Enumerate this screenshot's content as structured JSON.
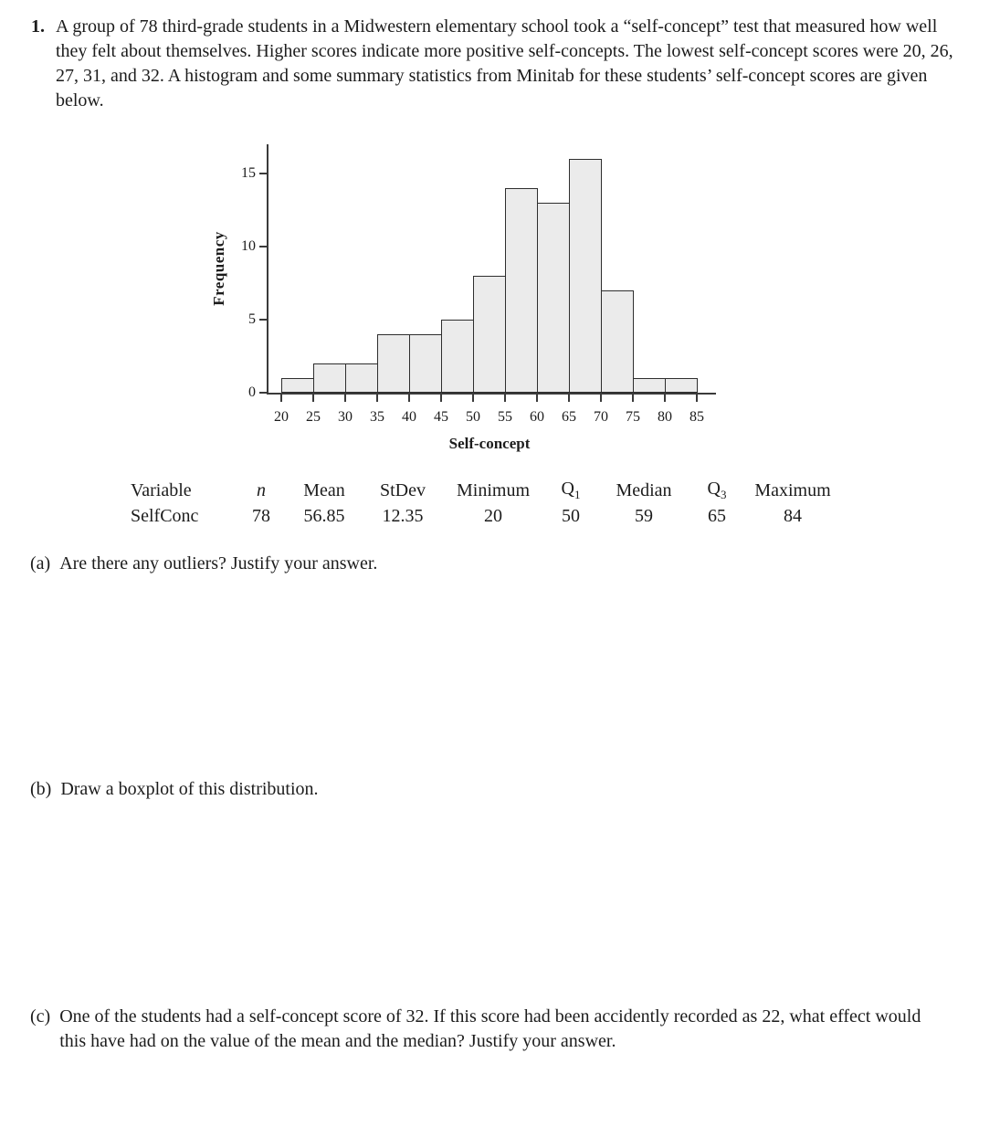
{
  "problem": {
    "number": "1.",
    "text": "A group of 78 third-grade students in a Midwestern elementary school took a “self-concept” test that measured how well they felt about themselves. Higher scores indicate more positive self-concepts. The lowest self-concept scores were 20, 26, 27, 31, and 32.  A histogram and some summary statistics from Minitab for these students’ self-concept scores are given below."
  },
  "chart_data": {
    "type": "bar",
    "subtype": "histogram",
    "title": "",
    "xlabel": "Self-concept",
    "ylabel": "Frequency",
    "bin_edges": [
      20,
      25,
      30,
      35,
      40,
      45,
      50,
      55,
      60,
      65,
      70,
      75,
      80,
      85
    ],
    "values": [
      1,
      2,
      2,
      4,
      4,
      5,
      8,
      14,
      13,
      16,
      7,
      1,
      1
    ],
    "total_count": 78,
    "x_ticks": [
      20,
      25,
      30,
      35,
      40,
      45,
      50,
      55,
      60,
      65,
      70,
      75,
      80,
      85
    ],
    "y_ticks": [
      0,
      5,
      10,
      15
    ],
    "ylim": [
      0,
      17
    ],
    "grid": false,
    "bar_fill": "#ebebeb",
    "bar_border": "#2e2e2e"
  },
  "stats_table": {
    "headers": [
      {
        "text": "Variable"
      },
      {
        "text": "n"
      },
      {
        "text": "Mean"
      },
      {
        "text": "StDev"
      },
      {
        "text": "Minimum"
      },
      {
        "text": "Q",
        "sub": "1"
      },
      {
        "text": "Median"
      },
      {
        "text": "Q",
        "sub": "3"
      },
      {
        "text": "Maximum"
      }
    ],
    "row": [
      "SelfConc",
      "78",
      "56.85",
      "12.35",
      "20",
      "50",
      "59",
      "65",
      "84"
    ]
  },
  "questions": [
    {
      "label": "(a)",
      "text": "Are there any outliers?  Justify your answer."
    },
    {
      "label": "(b)",
      "text": "Draw a boxplot of this distribution."
    },
    {
      "label": "(c)",
      "text": "One of the students had a self-concept score of 32. If this score had been accidently recorded as 22, what effect would this have had on the value of the mean and the median? Justify your answer."
    }
  ]
}
